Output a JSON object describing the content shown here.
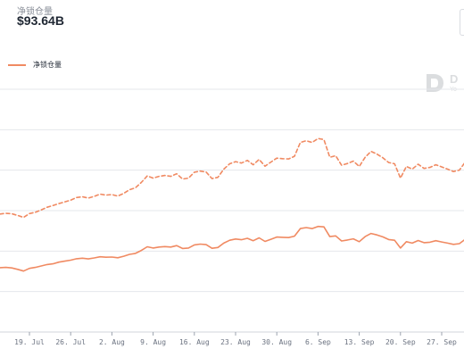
{
  "header": {
    "metric_label": "净锁仓量",
    "metric_value": "$93.64B"
  },
  "legend": {
    "label": "净锁仓量"
  },
  "watermark": {
    "name": "D",
    "sub": "Yo",
    "icon": "db-logo-icon"
  },
  "colors": {
    "series": "#f08a62",
    "grid": "#e5e7eb",
    "axis_text": "#6b7280"
  },
  "chart_data": {
    "type": "line",
    "title": "",
    "xlabel": "",
    "ylabel": "",
    "grid": true,
    "legend_position": "top-left",
    "x_ticks": [
      "19. Jul",
      "26. Jul",
      "2. Aug",
      "9. Aug",
      "16. Aug",
      "23. Aug",
      "30. Aug",
      "6. Sep",
      "13. Sep",
      "20. Sep",
      "27. Sep"
    ],
    "x": [
      "14. Jul",
      "15. Jul",
      "16. Jul",
      "17. Jul",
      "18. Jul",
      "19. Jul",
      "20. Jul",
      "21. Jul",
      "22. Jul",
      "23. Jul",
      "24. Jul",
      "25. Jul",
      "26. Jul",
      "27. Jul",
      "28. Jul",
      "29. Jul",
      "30. Jul",
      "31. Jul",
      "1. Aug",
      "2. Aug",
      "3. Aug",
      "4. Aug",
      "5. Aug",
      "6. Aug",
      "7. Aug",
      "8. Aug",
      "9. Aug",
      "10. Aug",
      "11. Aug",
      "12. Aug",
      "13. Aug",
      "14. Aug",
      "15. Aug",
      "16. Aug",
      "17. Aug",
      "18. Aug",
      "19. Aug",
      "20. Aug",
      "21. Aug",
      "22. Aug",
      "23. Aug",
      "24. Aug",
      "25. Aug",
      "26. Aug",
      "27. Aug",
      "28. Aug",
      "29. Aug",
      "30. Aug",
      "31. Aug",
      "1. Sep",
      "2. Sep",
      "3. Sep",
      "4. Sep",
      "5. Sep",
      "6. Sep",
      "7. Sep",
      "8. Sep",
      "9. Sep",
      "10. Sep",
      "11. Sep",
      "12. Sep",
      "13. Sep",
      "14. Sep",
      "15. Sep",
      "16. Sep",
      "17. Sep",
      "18. Sep",
      "19. Sep",
      "20. Sep",
      "21. Sep",
      "22. Sep",
      "23. Sep",
      "24. Sep",
      "25. Sep",
      "26. Sep",
      "27. Sep",
      "28. Sep",
      "29. Sep",
      "30. Sep",
      "1. Oct"
    ],
    "series": [
      {
        "style": "solid",
        "values": [
          26.5,
          26.6,
          26.4,
          25.8,
          25.1,
          26.2,
          26.6,
          27.2,
          27.8,
          28.1,
          28.8,
          29.2,
          29.6,
          30.2,
          30.4,
          30.1,
          30.5,
          31.0,
          30.8,
          30.9,
          30.6,
          31.2,
          32.0,
          32.4,
          33.6,
          35.1,
          34.6,
          35.0,
          35.2,
          35.0,
          35.6,
          34.4,
          34.6,
          35.9,
          36.2,
          36.0,
          34.5,
          34.8,
          36.6,
          37.8,
          38.3,
          38.0,
          38.6,
          37.6,
          38.8,
          37.3,
          38.2,
          39.1,
          39.0,
          38.9,
          39.5,
          42.6,
          43.0,
          42.6,
          43.5,
          43.3,
          39.3,
          39.6,
          37.5,
          37.9,
          38.4,
          37.2,
          39.3,
          40.6,
          40.0,
          39.2,
          38.1,
          37.8,
          34.6,
          37.2,
          36.6,
          37.7,
          36.8,
          37.0,
          37.6,
          37.1,
          36.6,
          36.1,
          36.4,
          38.2
        ]
      },
      {
        "style": "dashed",
        "values": [
          48.6,
          48.9,
          48.7,
          48.0,
          47.2,
          48.8,
          49.3,
          50.3,
          51.4,
          52.1,
          52.9,
          53.6,
          54.3,
          55.4,
          55.7,
          55.2,
          55.9,
          56.8,
          56.4,
          56.6,
          56.0,
          57.1,
          58.6,
          59.4,
          61.6,
          64.3,
          63.4,
          64.1,
          64.5,
          64.1,
          65.2,
          63.0,
          63.4,
          65.8,
          66.3,
          65.9,
          63.2,
          63.7,
          67.1,
          69.3,
          70.2,
          69.6,
          70.7,
          68.9,
          71.1,
          68.3,
          70.0,
          71.6,
          71.4,
          71.3,
          72.4,
          78.1,
          78.8,
          78.1,
          79.7,
          79.3,
          72.0,
          72.6,
          68.7,
          69.4,
          70.4,
          68.2,
          72.0,
          74.4,
          73.3,
          71.8,
          69.8,
          69.3,
          63.4,
          68.2,
          67.1,
          69.1,
          67.4,
          67.8,
          68.9,
          68.0,
          67.1,
          66.1,
          66.7,
          70.0
        ]
      }
    ],
    "ylim": [
      0,
      100
    ]
  }
}
